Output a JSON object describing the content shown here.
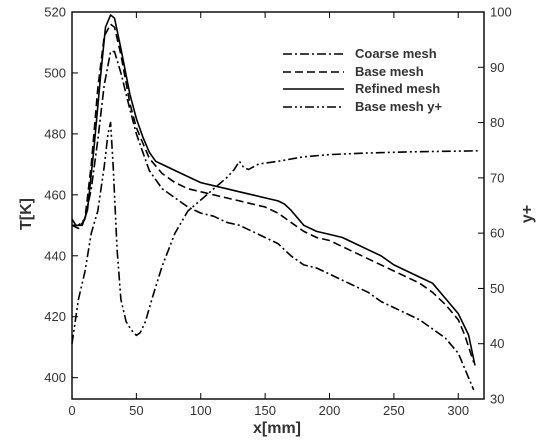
{
  "chart_data": {
    "type": "line",
    "xlabel": "x[mm]",
    "ylabel_left": "T[K]",
    "ylabel_right": "y+",
    "xlim": [
      0,
      320
    ],
    "ylim_left": [
      393,
      520
    ],
    "ylim_right": [
      30,
      100
    ],
    "x_ticks": [
      0,
      50,
      100,
      150,
      200,
      250,
      300
    ],
    "y_ticks_left": [
      400,
      420,
      440,
      460,
      480,
      500,
      520
    ],
    "y_ticks_right": [
      30,
      40,
      50,
      60,
      70,
      80,
      90,
      100
    ],
    "grid": false,
    "legend_position": "top-right",
    "series": [
      {
        "name": "Coarse mesh",
        "axis": "left",
        "dash": "dashdot",
        "points": [
          [
            0,
            450
          ],
          [
            5,
            450
          ],
          [
            10,
            452
          ],
          [
            15,
            462
          ],
          [
            20,
            478
          ],
          [
            25,
            496
          ],
          [
            30,
            507
          ],
          [
            33,
            507
          ],
          [
            38,
            500
          ],
          [
            45,
            488
          ],
          [
            50,
            480
          ],
          [
            55,
            474
          ],
          [
            60,
            468
          ],
          [
            70,
            462
          ],
          [
            80,
            459
          ],
          [
            90,
            456
          ],
          [
            100,
            454
          ],
          [
            110,
            453
          ],
          [
            120,
            451
          ],
          [
            130,
            450
          ],
          [
            140,
            448
          ],
          [
            150,
            446
          ],
          [
            160,
            444
          ],
          [
            170,
            440
          ],
          [
            180,
            437
          ],
          [
            190,
            436
          ],
          [
            200,
            434
          ],
          [
            210,
            432
          ],
          [
            220,
            430
          ],
          [
            230,
            428
          ],
          [
            240,
            425
          ],
          [
            250,
            423
          ],
          [
            260,
            421
          ],
          [
            270,
            419
          ],
          [
            280,
            416
          ],
          [
            290,
            413
          ],
          [
            300,
            408
          ],
          [
            305,
            403
          ],
          [
            312,
            396
          ]
        ]
      },
      {
        "name": "Base mesh",
        "axis": "left",
        "dash": "dashed",
        "points": [
          [
            0,
            450
          ],
          [
            5,
            449
          ],
          [
            10,
            452
          ],
          [
            15,
            470
          ],
          [
            20,
            495
          ],
          [
            25,
            512
          ],
          [
            30,
            516
          ],
          [
            33,
            515
          ],
          [
            38,
            506
          ],
          [
            45,
            490
          ],
          [
            50,
            482
          ],
          [
            55,
            477
          ],
          [
            60,
            472
          ],
          [
            70,
            467
          ],
          [
            80,
            464
          ],
          [
            90,
            462
          ],
          [
            100,
            461
          ],
          [
            110,
            460
          ],
          [
            120,
            459
          ],
          [
            130,
            458
          ],
          [
            140,
            457
          ],
          [
            150,
            456
          ],
          [
            160,
            454
          ],
          [
            170,
            451
          ],
          [
            180,
            448
          ],
          [
            190,
            446
          ],
          [
            200,
            445
          ],
          [
            210,
            443
          ],
          [
            220,
            441
          ],
          [
            230,
            439
          ],
          [
            240,
            437
          ],
          [
            250,
            435
          ],
          [
            260,
            433
          ],
          [
            270,
            431
          ],
          [
            280,
            428
          ],
          [
            290,
            424
          ],
          [
            300,
            419
          ],
          [
            305,
            414
          ],
          [
            312,
            405
          ]
        ]
      },
      {
        "name": "Refined mesh",
        "axis": "left",
        "dash": "solid",
        "points": [
          [
            0,
            452
          ],
          [
            3,
            450
          ],
          [
            8,
            450
          ],
          [
            12,
            455
          ],
          [
            17,
            475
          ],
          [
            22,
            498
          ],
          [
            26,
            515
          ],
          [
            30,
            519
          ],
          [
            33,
            518
          ],
          [
            38,
            508
          ],
          [
            45,
            493
          ],
          [
            50,
            485
          ],
          [
            55,
            479
          ],
          [
            60,
            474
          ],
          [
            65,
            471
          ],
          [
            70,
            470
          ],
          [
            80,
            468
          ],
          [
            90,
            466
          ],
          [
            100,
            464
          ],
          [
            110,
            463
          ],
          [
            120,
            462
          ],
          [
            130,
            461
          ],
          [
            140,
            460
          ],
          [
            150,
            459
          ],
          [
            160,
            458
          ],
          [
            165,
            457
          ],
          [
            170,
            455
          ],
          [
            180,
            450
          ],
          [
            190,
            448
          ],
          [
            200,
            447
          ],
          [
            210,
            446
          ],
          [
            220,
            444
          ],
          [
            230,
            442
          ],
          [
            240,
            440
          ],
          [
            250,
            437
          ],
          [
            260,
            435
          ],
          [
            270,
            433
          ],
          [
            280,
            431
          ],
          [
            290,
            426
          ],
          [
            300,
            421
          ],
          [
            308,
            414
          ],
          [
            313,
            404
          ]
        ]
      },
      {
        "name": "Base mesh y+",
        "axis": "right",
        "dash": "dashdotdot",
        "points": [
          [
            0,
            40
          ],
          [
            5,
            48
          ],
          [
            10,
            53
          ],
          [
            15,
            60
          ],
          [
            20,
            64
          ],
          [
            25,
            72
          ],
          [
            28,
            78
          ],
          [
            30,
            80
          ],
          [
            32,
            72
          ],
          [
            35,
            57
          ],
          [
            38,
            48
          ],
          [
            42,
            44
          ],
          [
            46,
            42.5
          ],
          [
            50,
            41.5
          ],
          [
            53,
            42
          ],
          [
            57,
            44
          ],
          [
            62,
            48
          ],
          [
            70,
            54
          ],
          [
            80,
            60
          ],
          [
            90,
            64
          ],
          [
            100,
            66
          ],
          [
            110,
            68
          ],
          [
            120,
            70
          ],
          [
            126,
            71.5
          ],
          [
            130,
            73
          ],
          [
            133,
            72
          ],
          [
            137,
            71.5
          ],
          [
            145,
            72.5
          ],
          [
            160,
            73
          ],
          [
            180,
            73.8
          ],
          [
            200,
            74.2
          ],
          [
            230,
            74.5
          ],
          [
            260,
            74.7
          ],
          [
            290,
            74.8
          ],
          [
            315,
            74.9
          ]
        ]
      }
    ]
  }
}
